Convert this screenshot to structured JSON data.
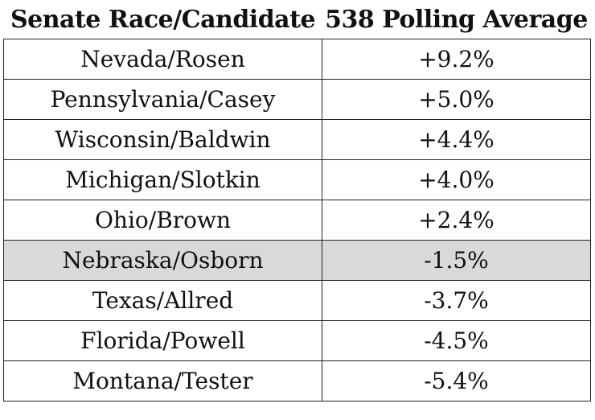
{
  "table": {
    "headers": [
      "Senate Race/Candidate",
      "538 Polling Average"
    ],
    "rows": [
      {
        "race": "Nevada/Rosen",
        "average": "+9.2%",
        "highlighted": false
      },
      {
        "race": "Pennsylvania/Casey",
        "average": "+5.0%",
        "highlighted": false
      },
      {
        "race": "Wisconsin/Baldwin",
        "average": "+4.4%",
        "highlighted": false
      },
      {
        "race": "Michigan/Slotkin",
        "average": "+4.0%",
        "highlighted": false
      },
      {
        "race": "Ohio/Brown",
        "average": "+2.4%",
        "highlighted": false
      },
      {
        "race": "Nebraska/Osborn",
        "average": "-1.5%",
        "highlighted": true
      },
      {
        "race": "Texas/Allred",
        "average": "-3.7%",
        "highlighted": false
      },
      {
        "race": "Florida/Powell",
        "average": "-4.5%",
        "highlighted": false
      },
      {
        "race": "Montana/Tester",
        "average": "-5.4%",
        "highlighted": false
      }
    ],
    "highlight_color": "#d9d9d9"
  }
}
